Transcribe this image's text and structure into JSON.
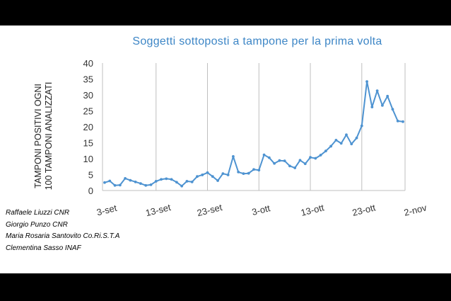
{
  "chart_data": {
    "type": "line",
    "title": "Soggetti sottoposti a tampone per la prima volta",
    "ylabel_lines": [
      "TAMPONI POSITIVI OGNI",
      "100 TAMPONI ANALIZZATI"
    ],
    "xlabel": "",
    "x_tick_labels": [
      "3-set",
      "13-set",
      "23-set",
      "3-ott",
      "13-ott",
      "23-ott",
      "2-nov"
    ],
    "y_ticks": [
      0,
      5,
      10,
      15,
      20,
      25,
      30,
      35,
      40
    ],
    "ylim": [
      0,
      40
    ],
    "grid": "vertical",
    "legend": "none",
    "line_color": "#4e93d1",
    "series": [
      {
        "values": [
          2.5,
          3.0,
          1.6,
          1.7,
          3.8,
          3.2,
          2.7,
          2.2,
          1.6,
          1.8,
          2.9,
          3.5,
          3.7,
          3.5,
          2.6,
          1.4,
          2.9,
          2.7,
          4.4,
          4.9,
          5.6,
          4.4,
          3.1,
          5.3,
          4.9,
          10.7,
          5.8,
          5.3,
          5.4,
          6.6,
          6.4,
          11.2,
          10.3,
          8.5,
          9.4,
          9.3,
          7.7,
          7.1,
          9.5,
          8.4,
          10.4,
          10.1,
          11.1,
          12.4,
          13.9,
          15.8,
          14.8,
          17.5,
          14.6,
          16.5,
          20.3,
          34.2,
          26.2,
          31.3,
          26.7,
          29.6,
          25.5,
          21.8,
          21.6
        ]
      }
    ]
  },
  "credits": [
    "Raffaele Liuzzi CNR",
    "Giorgio Punzo CNR",
    "Maria Rosaria Santovito Co.Ri.S.T.A",
    "Clementina Sasso INAF"
  ]
}
